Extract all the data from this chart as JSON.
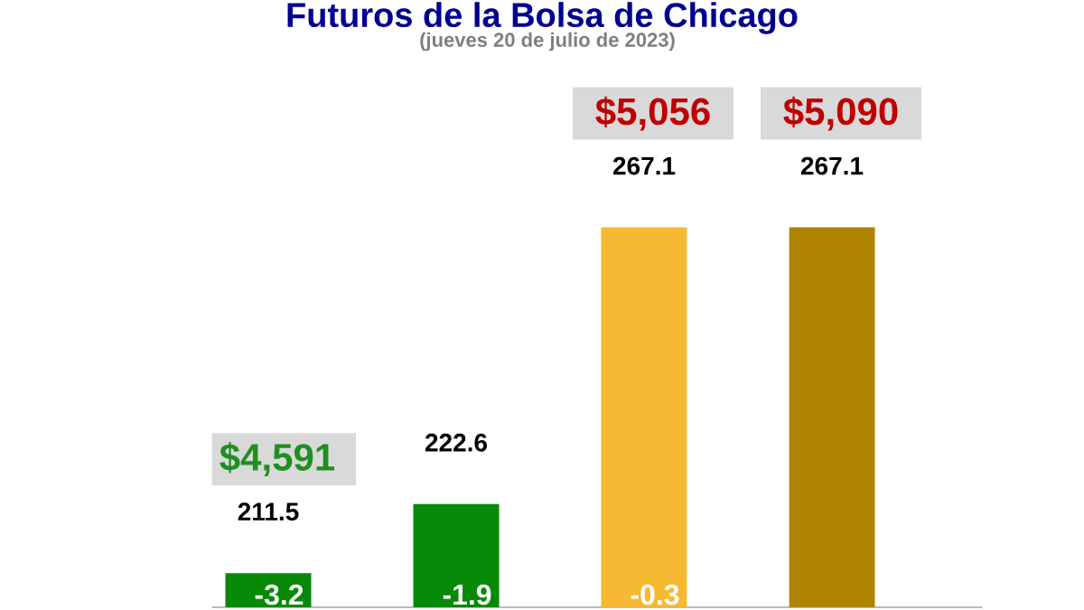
{
  "chart_data": {
    "type": "bar",
    "title": "Futuros de la Bolsa de Chicago",
    "subtitle": "(jueves 20 de julio de 2023)",
    "categories": [
      null,
      null,
      null,
      null
    ],
    "values": [
      211.5,
      222.6,
      267.1,
      267.1
    ],
    "colors": [
      "#078a07",
      "#078a07",
      "#f5ba32",
      "#b08400"
    ],
    "ylim": [
      206,
      290
    ],
    "data_labels": true,
    "annotations": [
      "$4,591",
      "$5,056",
      "$5,090",
      "-3.2",
      "-1.9",
      "-0.3"
    ]
  }
}
